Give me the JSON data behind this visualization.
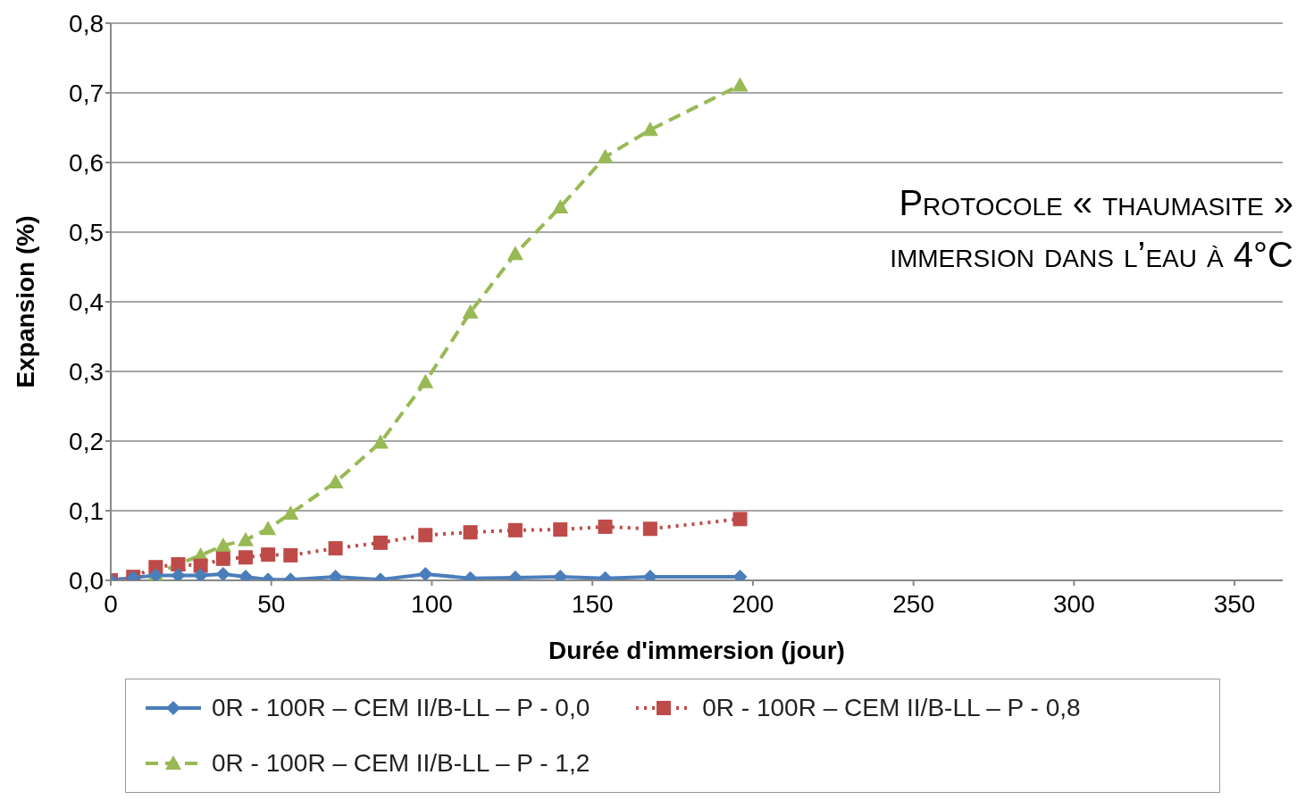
{
  "chart_data": {
    "type": "line",
    "xlabel": "Durée d'immersion (jour)",
    "ylabel": "Expansion (%)",
    "annotations": [
      "Protocole « thaumasite »",
      "immersion dans l’eau à 4°C"
    ],
    "x": [
      0,
      7,
      14,
      21,
      28,
      35,
      42,
      49,
      56,
      70,
      84,
      98,
      112,
      126,
      140,
      154,
      168,
      196
    ],
    "series": [
      {
        "name": "0R - 100R – CEM II/B-LL – P - 0,0",
        "color": "#4a7ebb",
        "marker": "diamond",
        "line_style": "solid",
        "values": [
          0,
          0.004,
          0.007,
          0.007,
          0.007,
          0.009,
          0.005,
          0.001,
          0.001,
          0.005,
          0.001,
          0.009,
          0.003,
          0.004,
          0.005,
          0.003,
          0.005,
          0.005
        ]
      },
      {
        "name": "0R - 100R – CEM II/B-LL – P - 0,8",
        "color": "#be4b48",
        "marker": "square",
        "line_style": "dotted",
        "values": [
          0,
          0.005,
          0.019,
          0.023,
          0.021,
          0.031,
          0.033,
          0.037,
          0.036,
          0.046,
          0.054,
          0.065,
          0.069,
          0.072,
          0.073,
          0.077,
          0.074,
          0.088
        ]
      },
      {
        "name": "0R - 100R – CEM II/B-LL – P - 1,2",
        "color": "#98b954",
        "marker": "triangle",
        "line_style": "dashed",
        "values": [
          0,
          0.003,
          0.009,
          0.023,
          0.036,
          0.05,
          0.058,
          0.074,
          0.096,
          0.141,
          0.198,
          0.285,
          0.385,
          0.469,
          0.536,
          0.608,
          0.647,
          0.711
        ]
      }
    ],
    "xlim": [
      0,
      365
    ],
    "xticks": [
      0,
      50,
      100,
      150,
      200,
      250,
      300,
      350
    ],
    "ylim": [
      0,
      0.8
    ],
    "yticks": [
      {
        "value": 0,
        "label": "0,0"
      },
      {
        "value": 0.1,
        "label": "0,1"
      },
      {
        "value": 0.2,
        "label": "0,2"
      },
      {
        "value": 0.3,
        "label": "0,3"
      },
      {
        "value": 0.4,
        "label": "0,4"
      },
      {
        "value": 0.5,
        "label": "0,5"
      },
      {
        "value": 0.6,
        "label": "0,6"
      },
      {
        "value": 0.7,
        "label": "0,7"
      },
      {
        "value": 0.8,
        "label": "0,8"
      }
    ],
    "grid": "y",
    "legend": "bottom"
  }
}
